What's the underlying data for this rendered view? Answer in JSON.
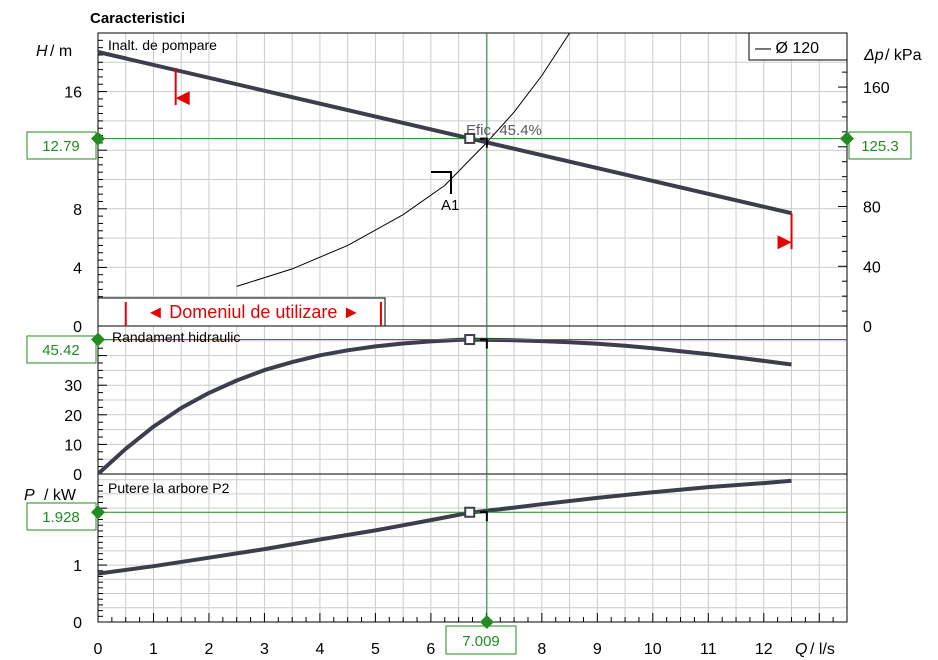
{
  "title": "Caracteristici",
  "axes": {
    "x": {
      "label": "Q",
      "unit": "/ l/s",
      "min": 0,
      "max": 13.5,
      "ticks": [
        0,
        1,
        2,
        3,
        4,
        5,
        6,
        7,
        8,
        9,
        10,
        11,
        12
      ]
    },
    "head": {
      "label": "H",
      "unit": "/ m",
      "min": 0,
      "max": 20,
      "ticks": [
        0,
        4,
        8,
        16
      ]
    },
    "pressure": {
      "label": "Δp",
      "unit": "/ kPa",
      "min": 0,
      "max": 196.2,
      "ticks": [
        0,
        40,
        80,
        160
      ]
    },
    "efficiency": {
      "min": 0,
      "max": 50,
      "ticks": [
        0,
        10,
        20,
        30
      ]
    },
    "power": {
      "label": "P",
      "unit": "/ kW",
      "min": 0,
      "max": 2.6,
      "ticks": [
        0,
        1
      ]
    }
  },
  "panels": {
    "head": {
      "title": "Inalt. de pompare"
    },
    "efficiency": {
      "title": "Randament hidraulic"
    },
    "power": {
      "title": "Putere la arbore P2"
    }
  },
  "legend": {
    "label": "— Ø 120"
  },
  "operating_point": {
    "q": 7.009,
    "q_label": "7.009",
    "head": 12.79,
    "head_label": "12.79",
    "pressure": 125.3,
    "pressure_label": "125.3",
    "efficiency": 45.42,
    "efficiency_label": "45.42",
    "power": 1.928,
    "power_label": "1.928",
    "eff_annotation": "Efic.  45.4%"
  },
  "range": {
    "label": "◄ Domeniul de utilizare ►",
    "q_min": 0.5,
    "q_max": 5.1
  },
  "system_curve_label": "A1",
  "chart_data": {
    "type": "line",
    "x_label": "Q / l/s",
    "series": [
      {
        "name": "Inalt. de pompare",
        "unit": "m",
        "x": [
          0,
          12.5
        ],
        "y": [
          18.7,
          7.7
        ]
      },
      {
        "unit": "m",
        "x": [
          2.5,
          3.5,
          4.5,
          5.5,
          6.25,
          7.0,
          7.5,
          8.0,
          8.5,
          9.0
        ],
        "y": [
          2.7,
          3.9,
          5.5,
          7.6,
          9.6,
          12.5,
          14.6,
          17.1,
          20.0,
          22.8
        ]
      },
      {
        "name": "Randament hidraulic",
        "unit": "%",
        "x": [
          0,
          0.5,
          1,
          1.5,
          2,
          2.5,
          3,
          3.5,
          4,
          4.5,
          5,
          5.5,
          6,
          6.5,
          6.7,
          7.5,
          8,
          8.5,
          9,
          9.5,
          10,
          10.5,
          11,
          11.5,
          12,
          12.5
        ],
        "y": [
          0,
          8.5,
          16,
          22.3,
          27.4,
          31.6,
          35.1,
          37.8,
          40.1,
          41.8,
          43.1,
          44.1,
          44.8,
          45.3,
          45.42,
          45.2,
          44.9,
          44.5,
          44,
          43.3,
          42.5,
          41.5,
          40.5,
          39.4,
          38.2,
          37
        ]
      },
      {
        "name": "Putere la arbore P2",
        "unit": "kW",
        "x": [
          0,
          1,
          2,
          3,
          4,
          5,
          6,
          6.7,
          7.5,
          8,
          9,
          10,
          11,
          12,
          12.5
        ],
        "y": [
          0.85,
          0.98,
          1.13,
          1.28,
          1.45,
          1.61,
          1.79,
          1.92,
          2.01,
          2.07,
          2.18,
          2.28,
          2.37,
          2.44,
          2.48
        ]
      }
    ]
  },
  "colors": {
    "curve": "#3c3f4b",
    "operating": "#228b22",
    "range": "#e60000",
    "grid": "#cccccc",
    "frame": "#000000"
  }
}
